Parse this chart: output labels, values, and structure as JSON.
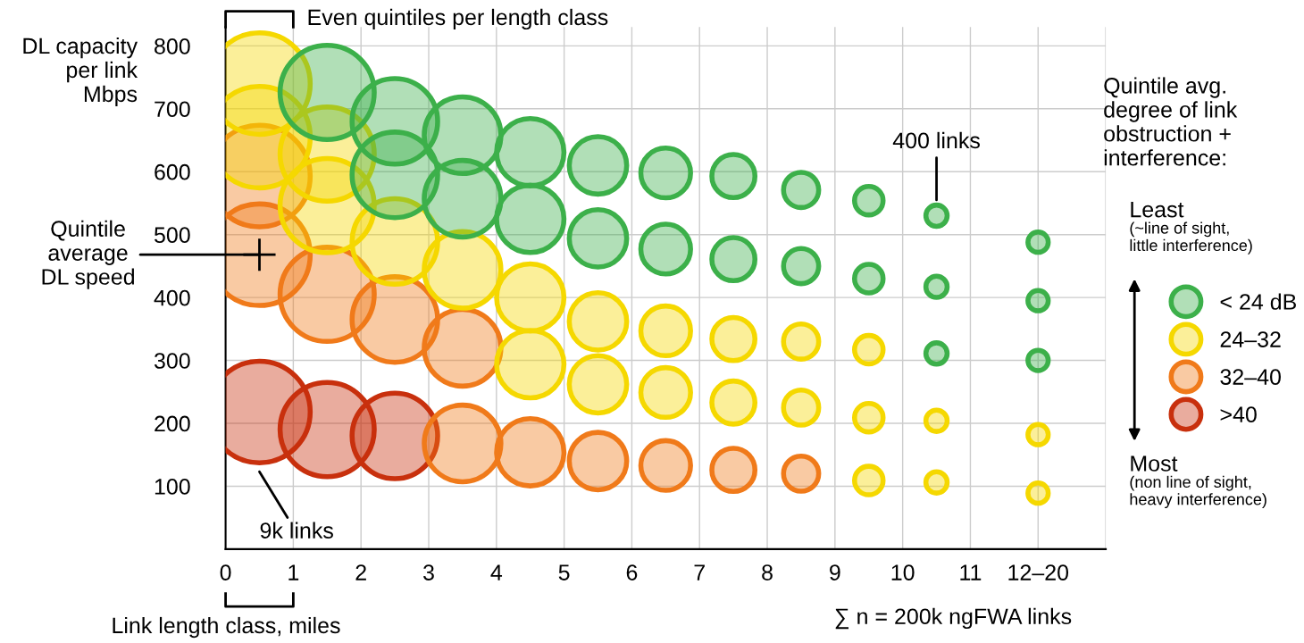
{
  "chart_data": {
    "type": "bubble",
    "ylabel": "DL capacity\nper link\nMbps",
    "xlabel": "Link length class, miles",
    "legend_title": "Quintile avg.\ndegree of link\nobstruction +\ninterference:",
    "xlim": [
      0,
      13
    ],
    "ylim": [
      0,
      830
    ],
    "xticks": [
      0,
      1,
      2,
      3,
      4,
      5,
      6,
      7,
      8,
      9,
      10,
      11,
      {
        "value": 12,
        "label": "12–20"
      },
      {
        "value": 13,
        "label": null
      }
    ],
    "yticks": [
      100,
      200,
      300,
      400,
      500,
      600,
      700,
      800
    ],
    "grid": true,
    "legend": "right",
    "series": [
      {
        "name": ">40",
        "color": "#c8300d",
        "x": [
          0.5,
          1.5,
          2.5
        ],
        "values": [
          218,
          190,
          180
        ],
        "sizes": [
          1,
          0.86,
          0.71
        ]
      },
      {
        "name": "32–40",
        "color": "#f07a1a",
        "x": [
          0.5,
          0.5,
          1.5,
          2.5,
          3.5,
          3.5,
          4.5,
          5.5,
          6.5,
          7.5,
          8.5
        ],
        "values": [
          593,
          468,
          405,
          365,
          320,
          168,
          154,
          140,
          133,
          126,
          120
        ],
        "sizes": [
          1,
          1,
          0.86,
          0.71,
          0.57,
          0.57,
          0.44,
          0.32,
          0.24,
          0.18,
          0.12
        ]
      },
      {
        "name": "24–32",
        "color": "#f5d800",
        "x": [
          0.5,
          0.5,
          1.5,
          1.5,
          2.5,
          3.5,
          4.5,
          4.5,
          5.5,
          5.5,
          6.5,
          6.5,
          7.5,
          7.5,
          8.5,
          8.5,
          9.5,
          9.5,
          9.5,
          10.5,
          10.5,
          12,
          12
        ],
        "values": [
          740,
          655,
          628,
          546,
          489,
          444,
          400,
          294,
          362,
          262,
          347,
          249,
          334,
          233,
          330,
          225,
          317,
          209,
          109,
          204,
          106,
          182,
          89
        ],
        "sizes": [
          1,
          1,
          0.86,
          0.86,
          0.71,
          0.57,
          0.44,
          0.44,
          0.32,
          0.32,
          0.24,
          0.24,
          0.18,
          0.18,
          0.12,
          0.12,
          0.079,
          0.079,
          0.079,
          0.044,
          0.044,
          0.04,
          0.04
        ]
      },
      {
        "name": "< 24 dB",
        "color": "#3cb04a",
        "x": [
          1.5,
          2.5,
          2.5,
          3.5,
          3.5,
          4.5,
          4.5,
          5.5,
          5.5,
          6.5,
          6.5,
          7.5,
          7.5,
          8.5,
          8.5,
          9.5,
          9.5,
          10.5,
          10.5,
          10.5,
          12,
          12,
          12
        ],
        "values": [
          726,
          680,
          595,
          658,
          557,
          631,
          525,
          610,
          494,
          598,
          477,
          593,
          461,
          571,
          450,
          554,
          430,
          530,
          417,
          311,
          488,
          395,
          300
        ],
        "sizes": [
          0.86,
          0.71,
          0.71,
          0.57,
          0.57,
          0.44,
          0.44,
          0.32,
          0.32,
          0.24,
          0.24,
          0.18,
          0.18,
          0.12,
          0.12,
          0.079,
          0.079,
          0.044,
          0.044,
          0.044,
          0.04,
          0.04,
          0.04
        ]
      }
    ],
    "annotations": [
      "Even quintiles per length class",
      {
        "text": "Quintile\naverage\nDL speed",
        "x": 0.5,
        "y": 468
      },
      "9k links",
      "400 links",
      "Least",
      "(~line of sight,\nlittle interference)",
      "Most",
      "(non line of sight,\nheavy interference)",
      "∑ n = 200k ngFWA links"
    ]
  }
}
